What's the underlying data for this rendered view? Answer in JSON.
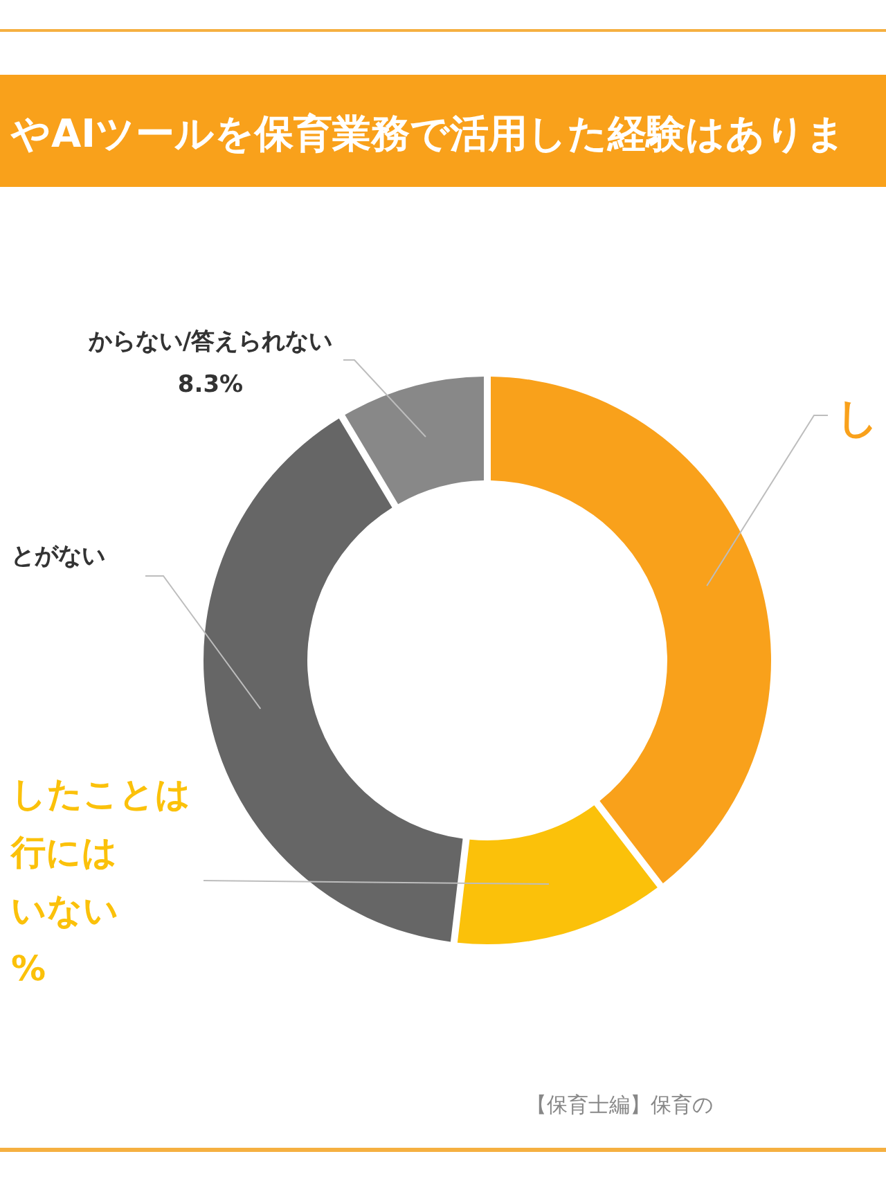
{
  "chart_data": {
    "type": "donut",
    "title": "やAIツールを保育業務で活用した経験はありま",
    "categories": [
      "し",
      "したことは行にはいない",
      "とがない",
      "からない/答えられない"
    ],
    "values": [
      39.8,
      12.1,
      39.8,
      8.3
    ],
    "colors": [
      "#f9a11b",
      "#fbc10a",
      "#666666",
      "#888888"
    ],
    "value_labels": [
      null,
      "%",
      null,
      "8.3%"
    ],
    "annotations": [
      "【保育士編】保育の"
    ]
  }
}
